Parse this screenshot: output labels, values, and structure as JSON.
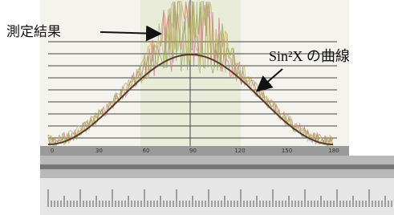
{
  "annotations": {
    "measured": "測定結果",
    "curve": "Sin²X の曲線"
  },
  "axis": {
    "ticks": [
      "0",
      "30",
      "60",
      "90",
      "120",
      "150",
      "180"
    ]
  }
}
